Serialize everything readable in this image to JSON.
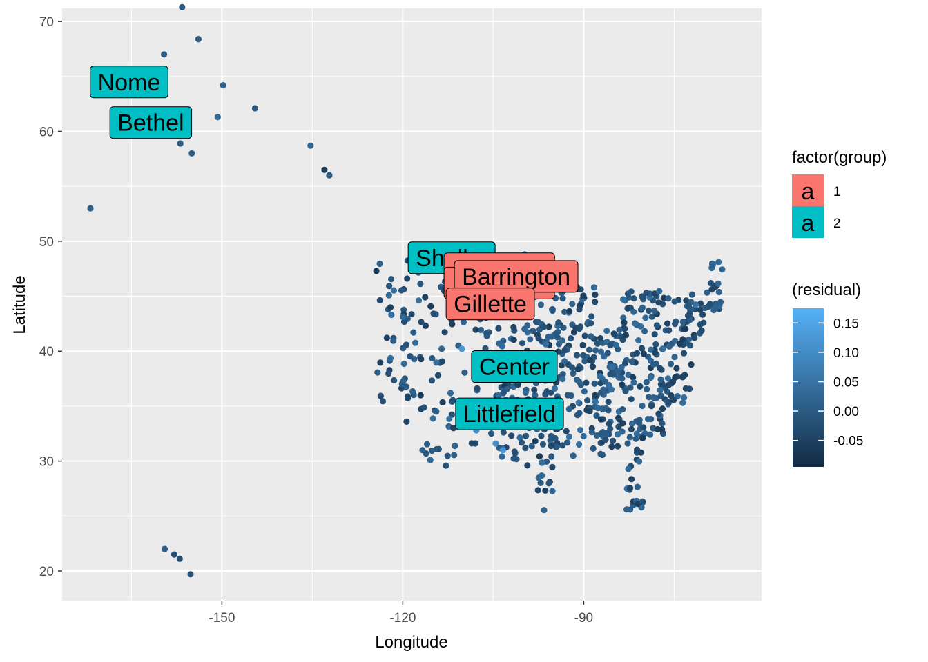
{
  "chart_data": {
    "type": "scatter",
    "xlabel": "Longitude",
    "ylabel": "Latitude",
    "xlim": [
      -176.5,
      -60.5
    ],
    "ylim": [
      17.3,
      71.2
    ],
    "x_ticks": [
      -150,
      -120,
      -90
    ],
    "x_tick_labels": [
      "-150",
      "-120",
      "-90"
    ],
    "y_ticks": [
      20,
      30,
      40,
      50,
      60,
      70
    ],
    "y_tick_labels": [
      "20",
      "30",
      "40",
      "50",
      "60",
      "70"
    ],
    "grid": true,
    "panel_background": "#ebebeb",
    "color_scale": {
      "title": "(residual)",
      "low_color": "#132b43",
      "high_color": "#56b1f7",
      "range": [
        -0.095,
        0.175
      ],
      "breaks": [
        -0.05,
        0.0,
        0.05,
        0.1,
        0.15
      ],
      "break_labels": [
        "-0.05",
        "0.00",
        "0.05",
        "0.10",
        "0.15"
      ]
    },
    "fill_legend": {
      "title": "factor(group)",
      "key_glyph": "a",
      "entries": [
        {
          "label": "1",
          "color": "#f8766d"
        },
        {
          "label": "2",
          "color": "#00bfc4"
        }
      ]
    },
    "labels": [
      {
        "text": "Nome",
        "x": -165.4,
        "y": 64.5,
        "group": 2
      },
      {
        "text": "Bethel",
        "x": -161.8,
        "y": 60.8,
        "group": 2
      },
      {
        "text": "Shelby",
        "x": -111.9,
        "y": 48.5,
        "group": 2
      },
      {
        "text": "",
        "x": -104.0,
        "y": 47.5,
        "group": 1
      },
      {
        "text": "",
        "x": -104.0,
        "y": 46.2,
        "group": 1
      },
      {
        "text": "Barrington",
        "x": -101.2,
        "y": 46.8,
        "group": 1
      },
      {
        "text": "Gillette",
        "x": -105.5,
        "y": 44.3,
        "group": 1
      },
      {
        "text": "Center",
        "x": -101.5,
        "y": 38.6,
        "group": 2
      },
      {
        "text": "Littlefield",
        "x": -102.3,
        "y": 34.3,
        "group": 2
      }
    ],
    "outlier_points": [
      [
        -156.6,
        71.3
      ],
      [
        -153.9,
        68.4
      ],
      [
        -159.6,
        67.0
      ],
      [
        -149.8,
        64.2
      ],
      [
        -144.5,
        62.1
      ],
      [
        -150.7,
        61.3
      ],
      [
        -156.9,
        58.9
      ],
      [
        -155.0,
        58.0
      ],
      [
        -135.3,
        58.7
      ],
      [
        -133.0,
        56.5
      ],
      [
        -132.2,
        56.0
      ],
      [
        -171.8,
        53.0
      ],
      [
        -159.5,
        22.0
      ],
      [
        -157.9,
        21.5
      ],
      [
        -157.0,
        21.1
      ],
      [
        -155.2,
        19.7
      ],
      [
        -104.6,
        31.6
      ],
      [
        -103.4,
        31.0
      ],
      [
        -107.8,
        32.8
      ],
      [
        -110.2,
        40.2
      ]
    ],
    "outlier_residuals": [
      0.0,
      0.0,
      0.0,
      0.02,
      0.0,
      0.03,
      0.0,
      0.01,
      0.02,
      -0.06,
      0.0,
      0.01,
      0.0,
      -0.02,
      -0.02,
      -0.02,
      0.1,
      0.12,
      0.1,
      0.12
    ],
    "mainland_points": {
      "count": 780,
      "lon_range": [
        -124.5,
        -67.0
      ],
      "lat_range": [
        25.5,
        48.9
      ],
      "typical_residual": [
        -0.06,
        0.06
      ]
    }
  }
}
